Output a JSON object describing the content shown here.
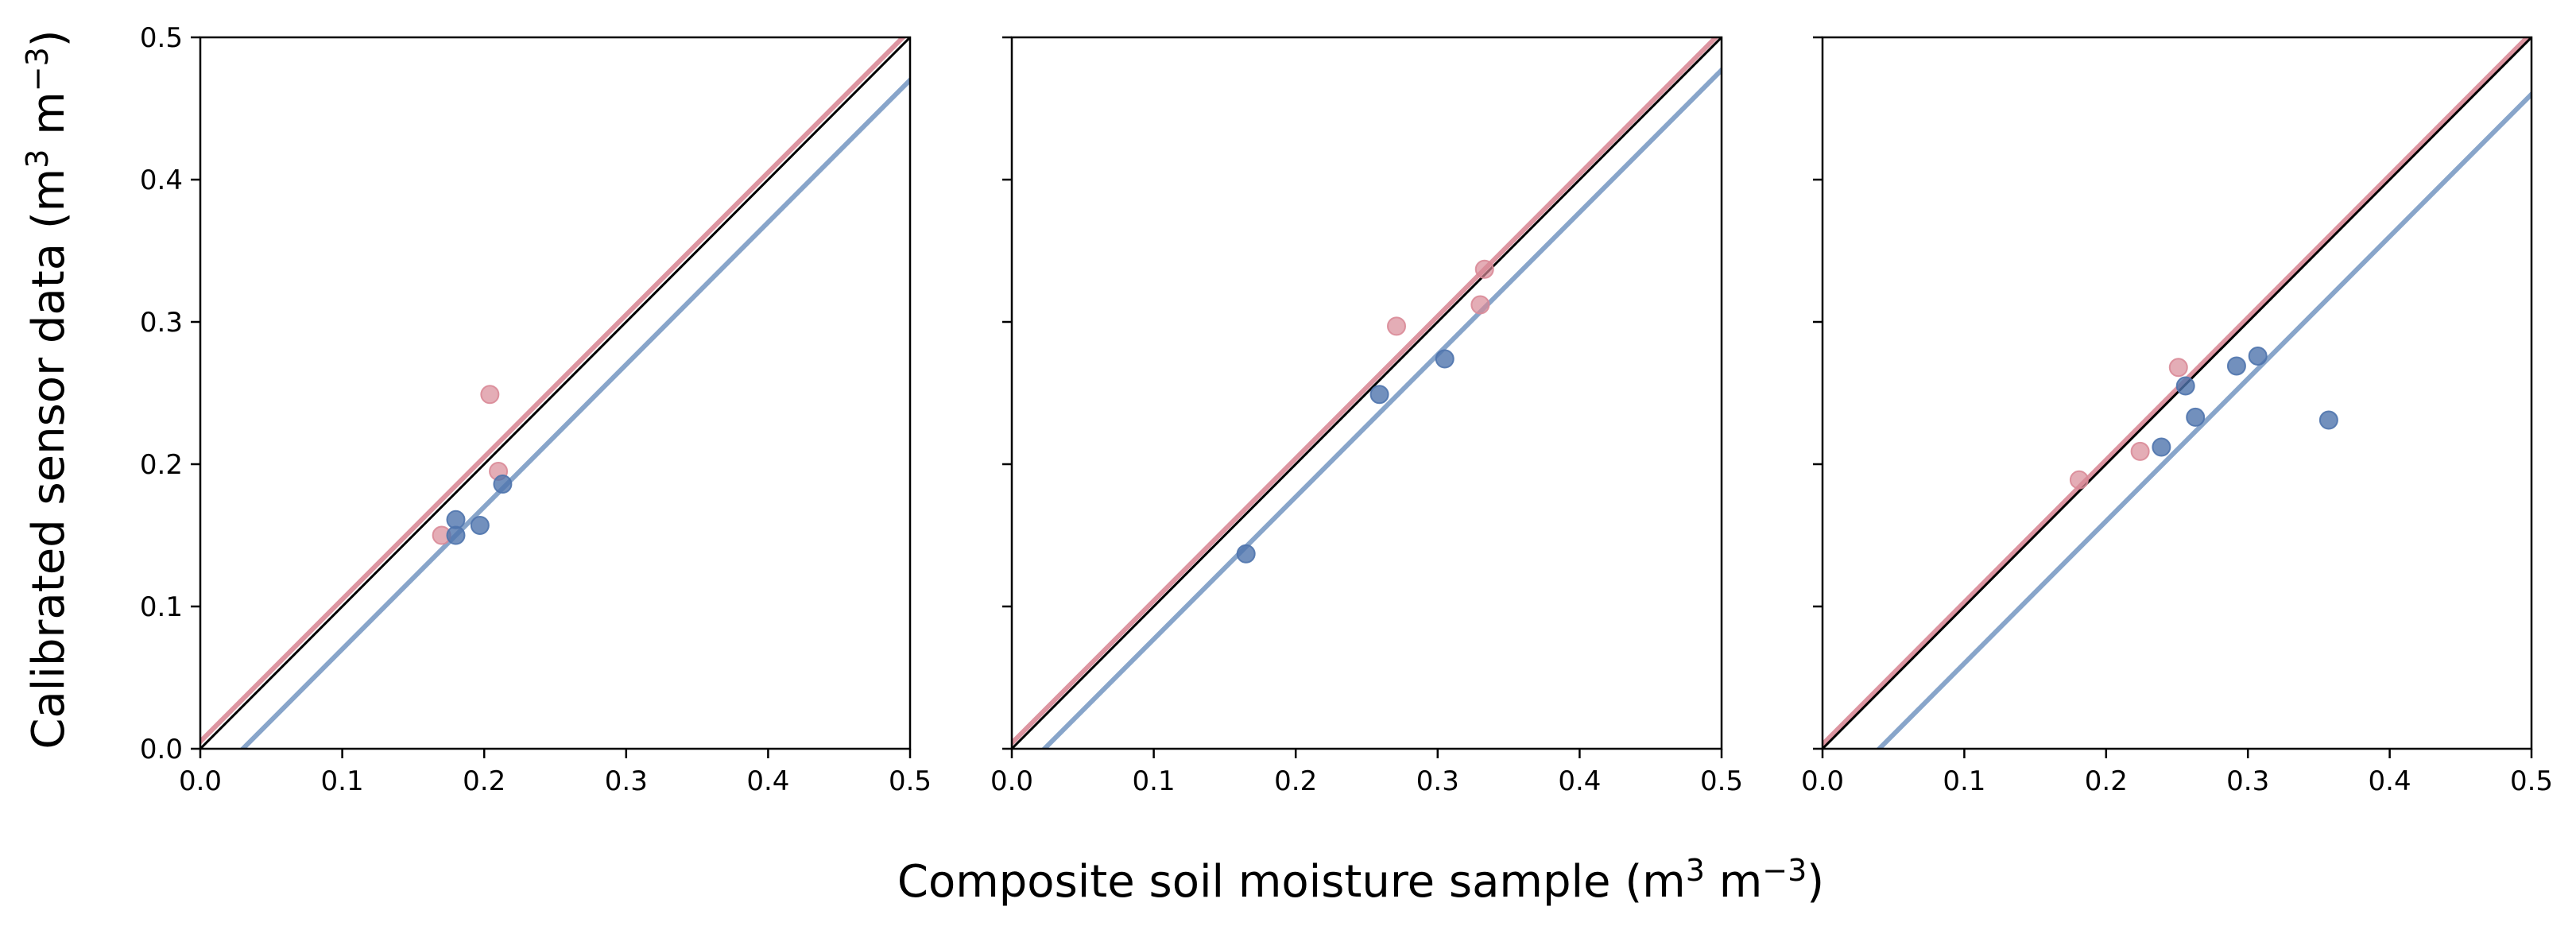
{
  "figure": {
    "xlabel": {
      "text": "Composite soil moisture sample (m",
      "sup1": "3",
      "mid": " m",
      "sup2": "−3",
      "end": ")"
    },
    "ylabel": {
      "text": "Calibrated sensor data (m",
      "sup1": "3",
      "mid": " m",
      "sup2": "−3",
      "end": ")"
    }
  },
  "colors": {
    "pink": "#d98a97",
    "blue": "#4f74ad",
    "pink_line": "#d98a97",
    "blue_line": "#7b9bc4",
    "identity": "#000000"
  },
  "chart_data": [
    {
      "type": "scatter",
      "xlim": [
        0,
        0.5
      ],
      "ylim": [
        0,
        0.5
      ],
      "xticks": [
        "0.0",
        "0.1",
        "0.2",
        "0.3",
        "0.4",
        "0.5"
      ],
      "yticks": [
        "0.0",
        "0.1",
        "0.2",
        "0.3",
        "0.4",
        "0.5"
      ],
      "show_ytick_labels": true,
      "grid": false,
      "series": [
        {
          "color": "pink",
          "points": [
            [
              0.17,
              0.15
            ],
            [
              0.204,
              0.249
            ],
            [
              0.21,
              0.195
            ]
          ]
        },
        {
          "color": "blue",
          "points": [
            [
              0.18,
              0.161
            ],
            [
              0.18,
              0.15
            ],
            [
              0.197,
              0.157
            ],
            [
              0.213,
              0.186
            ]
          ]
        }
      ],
      "lines": [
        {
          "color": "identity",
          "slope": 1,
          "intercept": 0.0
        },
        {
          "color": "pink_line",
          "slope": 1,
          "intercept": 0.005
        },
        {
          "color": "blue_line",
          "slope": 1,
          "intercept": -0.03
        }
      ]
    },
    {
      "type": "scatter",
      "xlim": [
        0,
        0.5
      ],
      "ylim": [
        0,
        0.5
      ],
      "xticks": [
        "0.0",
        "0.1",
        "0.2",
        "0.3",
        "0.4",
        "0.5"
      ],
      "yticks": [
        "0.0",
        "0.1",
        "0.2",
        "0.3",
        "0.4",
        "0.5"
      ],
      "show_ytick_labels": false,
      "grid": false,
      "series": [
        {
          "color": "pink",
          "points": [
            [
              0.271,
              0.297
            ],
            [
              0.33,
              0.312
            ],
            [
              0.333,
              0.337
            ]
          ]
        },
        {
          "color": "blue",
          "points": [
            [
              0.165,
              0.137
            ],
            [
              0.259,
              0.249
            ],
            [
              0.305,
              0.274
            ]
          ]
        }
      ],
      "lines": [
        {
          "color": "identity",
          "slope": 1,
          "intercept": 0.0
        },
        {
          "color": "pink_line",
          "slope": 1,
          "intercept": 0.004
        },
        {
          "color": "blue_line",
          "slope": 1,
          "intercept": -0.023
        }
      ]
    },
    {
      "type": "scatter",
      "xlim": [
        0,
        0.5
      ],
      "ylim": [
        0,
        0.5
      ],
      "xticks": [
        "0.0",
        "0.1",
        "0.2",
        "0.3",
        "0.4",
        "0.5"
      ],
      "yticks": [
        "0.0",
        "0.1",
        "0.2",
        "0.3",
        "0.4",
        "0.5"
      ],
      "show_ytick_labels": false,
      "grid": false,
      "series": [
        {
          "color": "pink",
          "points": [
            [
              0.181,
              0.189
            ],
            [
              0.224,
              0.209
            ],
            [
              0.251,
              0.268
            ]
          ]
        },
        {
          "color": "blue",
          "points": [
            [
              0.239,
              0.212
            ],
            [
              0.256,
              0.255
            ],
            [
              0.263,
              0.233
            ],
            [
              0.292,
              0.269
            ],
            [
              0.307,
              0.276
            ],
            [
              0.357,
              0.231
            ]
          ]
        }
      ],
      "lines": [
        {
          "color": "identity",
          "slope": 1,
          "intercept": 0.0
        },
        {
          "color": "pink_line",
          "slope": 1,
          "intercept": 0.003
        },
        {
          "color": "blue_line",
          "slope": 1,
          "intercept": -0.04
        }
      ]
    }
  ]
}
